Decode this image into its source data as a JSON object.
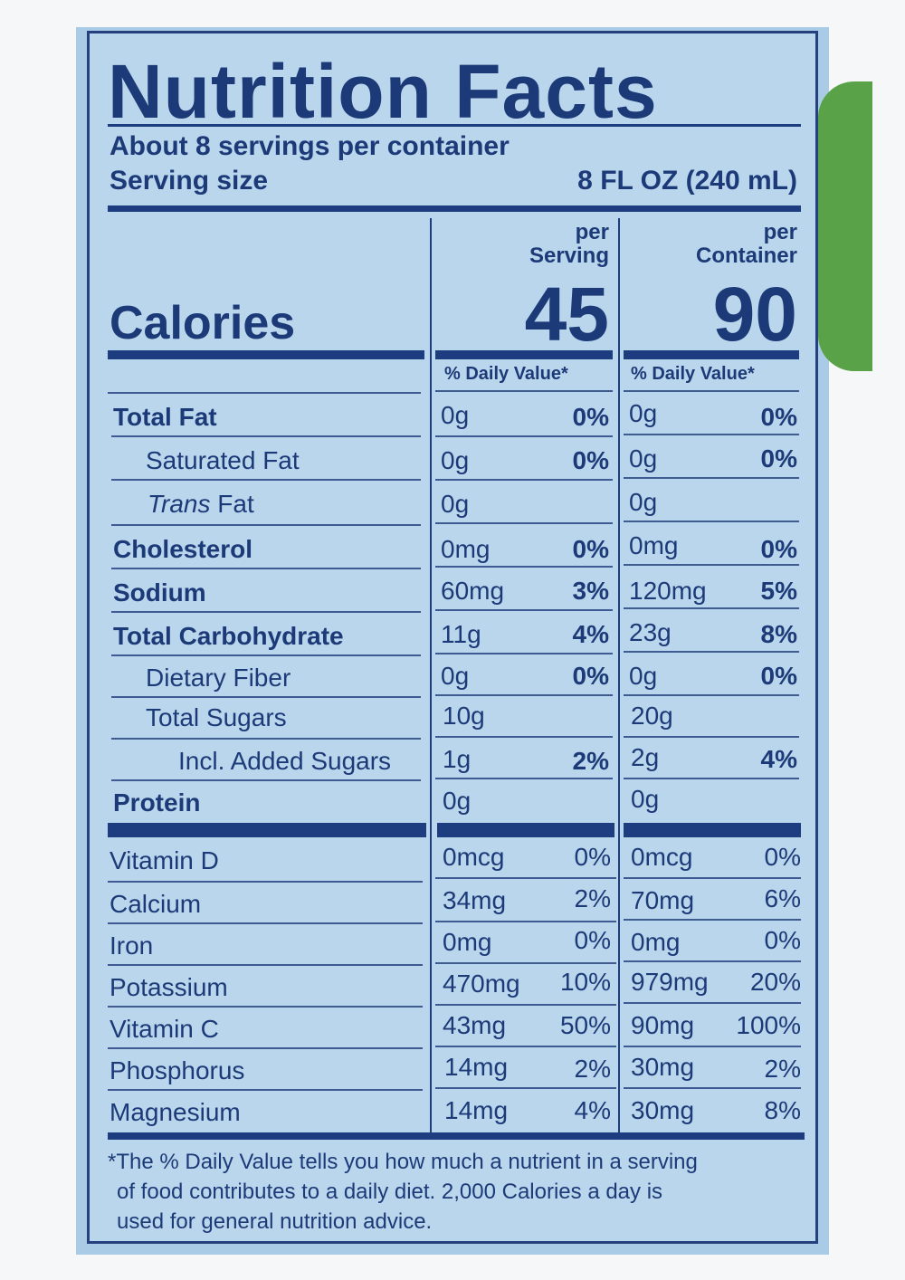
{
  "label": {
    "title": "Nutrition Facts",
    "servings": "About 8 servings per container",
    "serving_size_label": "Serving size",
    "serving_size_value": "8 FL OZ (240 mL)",
    "per_serving_header": [
      "per",
      "Serving"
    ],
    "per_container_header": [
      "per",
      "Container"
    ],
    "calories_label": "Calories",
    "calories_serving": "45",
    "calories_container": "90",
    "daily_value_header": "% Daily Value*",
    "nutrients": [
      {
        "name": "Total Fat",
        "serving_amount": "0g",
        "serving_dv": "0%",
        "container_amount": "0g",
        "container_dv": "0%"
      },
      {
        "name": "Saturated Fat",
        "serving_amount": "0g",
        "serving_dv": "0%",
        "container_amount": "0g",
        "container_dv": "0%"
      },
      {
        "name_italic": "Trans",
        "name_rest": " Fat",
        "serving_amount": "0g",
        "serving_dv": "",
        "container_amount": "0g",
        "container_dv": ""
      },
      {
        "name": "Cholesterol",
        "serving_amount": "0mg",
        "serving_dv": "0%",
        "container_amount": "0mg",
        "container_dv": "0%"
      },
      {
        "name": "Sodium",
        "serving_amount": "60mg",
        "serving_dv": "3%",
        "container_amount": "120mg",
        "container_dv": "5%"
      },
      {
        "name": "Total Carbohydrate",
        "serving_amount": "11g",
        "serving_dv": "4%",
        "container_amount": "23g",
        "container_dv": "8%"
      },
      {
        "name": "Dietary Fiber",
        "serving_amount": "0g",
        "serving_dv": "0%",
        "container_amount": "0g",
        "container_dv": "0%"
      },
      {
        "name": "Total Sugars",
        "serving_amount": "10g",
        "serving_dv": "",
        "container_amount": "20g",
        "container_dv": ""
      },
      {
        "name": "Incl. Added Sugars",
        "serving_amount": "1g",
        "serving_dv": "2%",
        "container_amount": "2g",
        "container_dv": "4%"
      },
      {
        "name": "Protein",
        "serving_amount": "0g",
        "serving_dv": "",
        "container_amount": "0g",
        "container_dv": ""
      }
    ],
    "vitamins": [
      {
        "name": "Vitamin D",
        "serving_amount": "0mcg",
        "serving_dv": "0%",
        "container_amount": "0mcg",
        "container_dv": "0%"
      },
      {
        "name": "Calcium",
        "serving_amount": "34mg",
        "serving_dv": "2%",
        "container_amount": "70mg",
        "container_dv": "6%"
      },
      {
        "name": "Iron",
        "serving_amount": "0mg",
        "serving_dv": "0%",
        "container_amount": "0mg",
        "container_dv": "0%"
      },
      {
        "name": "Potassium",
        "serving_amount": "470mg",
        "serving_dv": "10%",
        "container_amount": "979mg",
        "container_dv": "20%"
      },
      {
        "name": "Vitamin C",
        "serving_amount": "43mg",
        "serving_dv": "50%",
        "container_amount": "90mg",
        "container_dv": "100%"
      },
      {
        "name": "Phosphorus",
        "serving_amount": "14mg",
        "serving_dv": "2%",
        "container_amount": "30mg",
        "container_dv": "2%"
      },
      {
        "name": "Magnesium",
        "serving_amount": "14mg",
        "serving_dv": "4%",
        "container_amount": "30mg",
        "container_dv": "8%"
      }
    ],
    "footnote": [
      "*The % Daily Value tells you how much a nutrient in a serving",
      "of food contributes to a daily diet. 2,000 Calories a day is",
      "used for general nutrition advice."
    ],
    "colors": {
      "ink": "#1e3c80",
      "label_bg": "#b9d6ec",
      "package_bg": "#a9cbe6",
      "leaf": "#5aa247"
    }
  }
}
